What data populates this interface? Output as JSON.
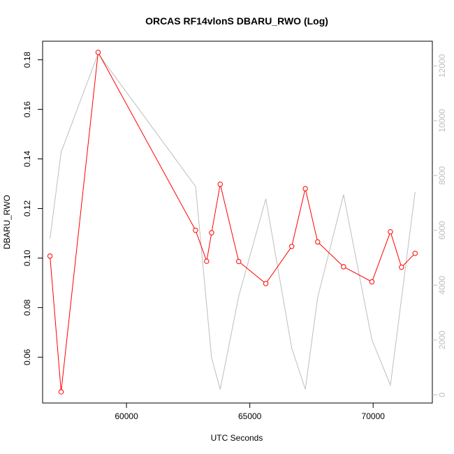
{
  "chart_data": {
    "type": "line",
    "title": "ORCAS RF14vlonS DBARU_RWO (Log)",
    "xlabel": "UTC Seconds",
    "ylabel": "DBARU_RWO",
    "xlim": [
      56600,
      72400
    ],
    "ylim": [
      0.0415,
      0.1875
    ],
    "y2lim": [
      -300,
      12900
    ],
    "x_ticks": [
      60000,
      65000,
      70000
    ],
    "y_ticks": [
      0.06,
      0.08,
      0.1,
      0.12,
      0.14,
      0.16,
      0.18
    ],
    "y2_ticks": [
      0,
      2000,
      4000,
      6000,
      8000,
      10000,
      12000
    ],
    "grid": false,
    "legend": "none",
    "series": [
      {
        "color": "#ff0000",
        "axis": "left",
        "markers": "open-circle",
        "points": [
          {
            "x": 56900,
            "y": 0.1008
          },
          {
            "x": 57350,
            "y": 0.046
          },
          {
            "x": 58850,
            "y": 0.183
          },
          {
            "x": 62800,
            "y": 0.1112
          },
          {
            "x": 63250,
            "y": 0.0987
          },
          {
            "x": 63450,
            "y": 0.1102
          },
          {
            "x": 63800,
            "y": 0.1298
          },
          {
            "x": 64550,
            "y": 0.0986
          },
          {
            "x": 65650,
            "y": 0.0897
          },
          {
            "x": 66700,
            "y": 0.1047
          },
          {
            "x": 67250,
            "y": 0.128
          },
          {
            "x": 67750,
            "y": 0.1065
          },
          {
            "x": 68800,
            "y": 0.0965
          },
          {
            "x": 69950,
            "y": 0.0904
          },
          {
            "x": 70700,
            "y": 0.1106
          },
          {
            "x": 71150,
            "y": 0.0963
          },
          {
            "x": 71700,
            "y": 0.1019
          }
        ]
      },
      {
        "color": "#bebebe",
        "axis": "right",
        "markers": "none",
        "points": [
          {
            "x": 56900,
            "y": 5700
          },
          {
            "x": 57350,
            "y": 8850
          },
          {
            "x": 58850,
            "y": 12450
          },
          {
            "x": 62800,
            "y": 7600
          },
          {
            "x": 63450,
            "y": 1350
          },
          {
            "x": 63800,
            "y": 200
          },
          {
            "x": 64550,
            "y": 3600
          },
          {
            "x": 65650,
            "y": 7150
          },
          {
            "x": 66700,
            "y": 1700
          },
          {
            "x": 67250,
            "y": 200
          },
          {
            "x": 67750,
            "y": 3550
          },
          {
            "x": 68800,
            "y": 7300
          },
          {
            "x": 69950,
            "y": 2000
          },
          {
            "x": 70700,
            "y": 350
          },
          {
            "x": 71700,
            "y": 7400
          }
        ]
      }
    ]
  }
}
